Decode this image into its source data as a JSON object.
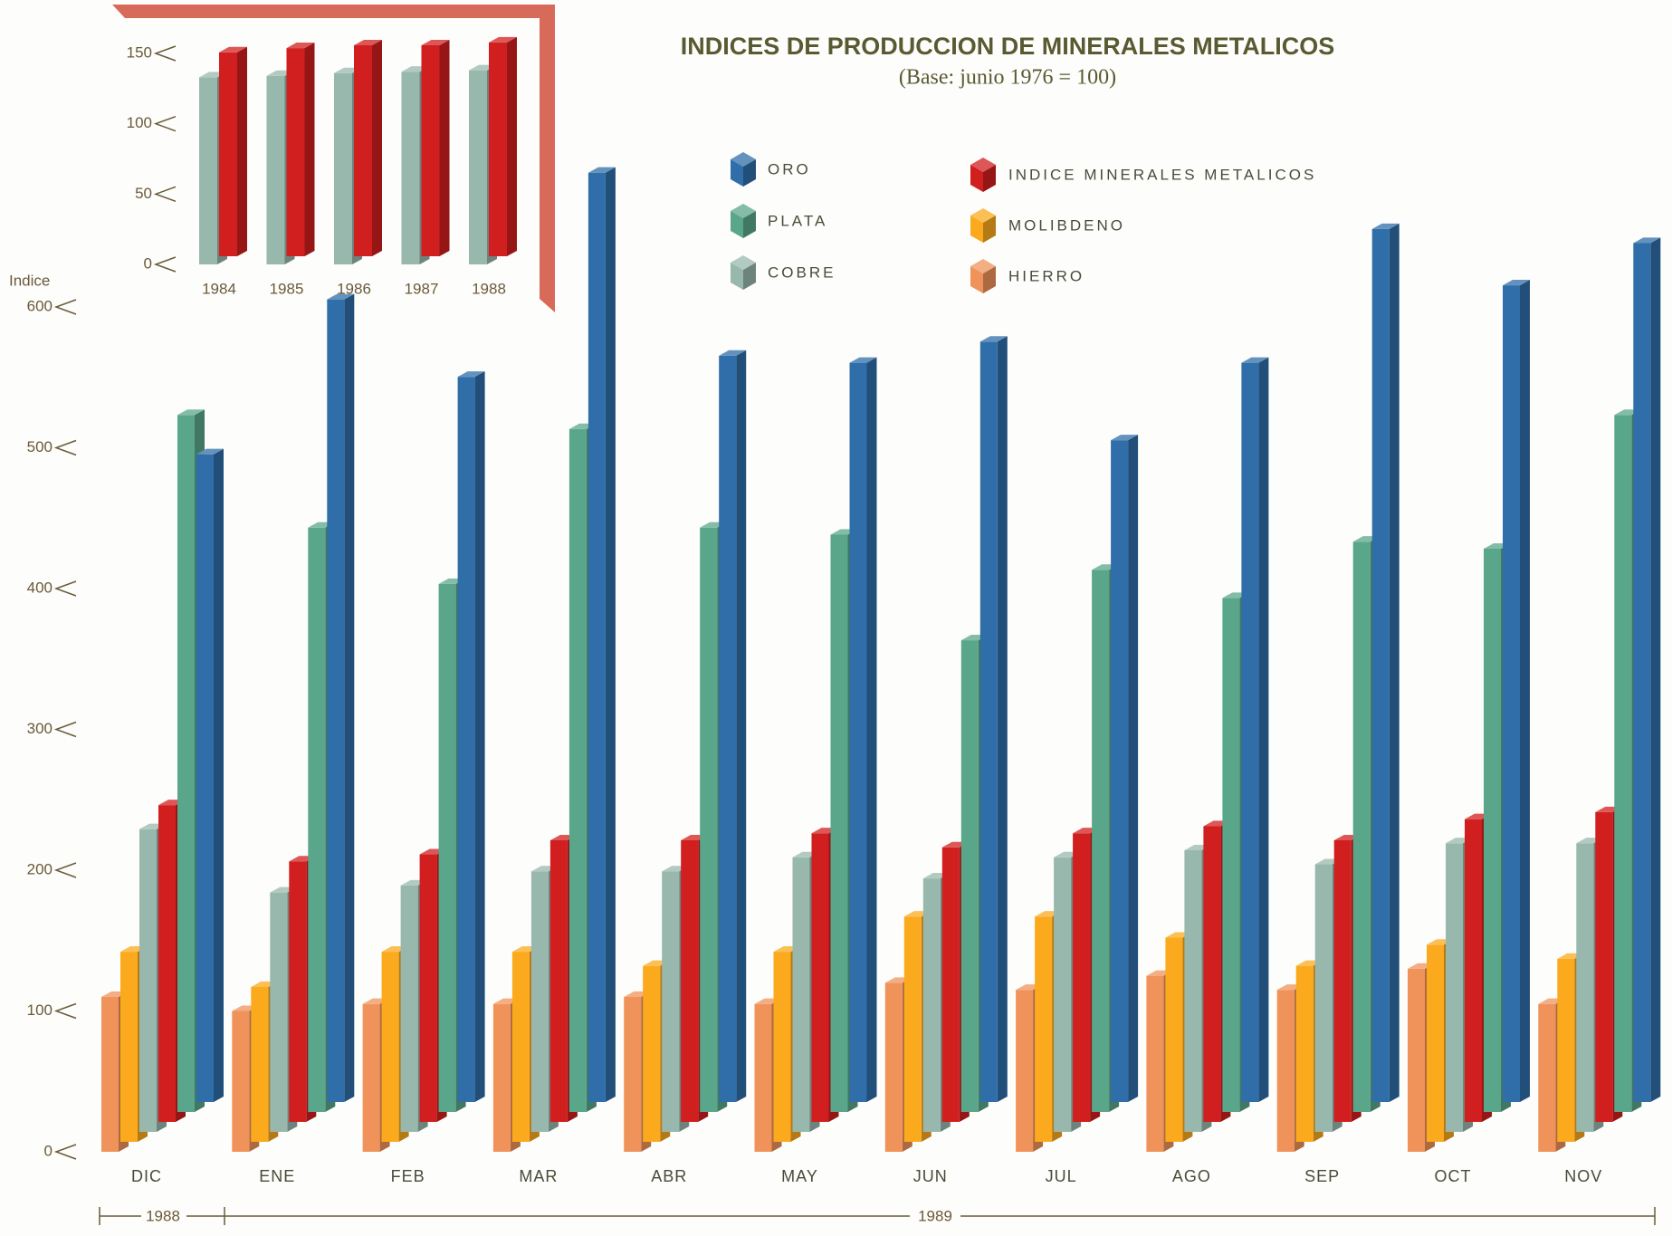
{
  "chart_data": [
    {
      "type": "bar3d",
      "title": "INDICES DE PRODUCCION DE MINERALES METALICOS",
      "subtitle": "(Base: junio 1976 = 100)",
      "y_label": "Indice",
      "periods": [
        "1988",
        "1989"
      ],
      "categories": [
        "DIC",
        "ENE",
        "FEB",
        "MAR",
        "ABR",
        "MAY",
        "JUN",
        "JUL",
        "AGO",
        "SEP",
        "OCT",
        "NOV"
      ],
      "ylim": [
        0,
        600
      ],
      "yticks": [
        0,
        100,
        200,
        300,
        400,
        500,
        600
      ],
      "series": [
        {
          "name": "HIERRO",
          "color": "#f0935a",
          "values": [
            110,
            100,
            105,
            105,
            110,
            105,
            120,
            115,
            125,
            115,
            130,
            105
          ]
        },
        {
          "name": "MOLIBDENO",
          "color": "#fbaa1e",
          "values": [
            135,
            110,
            135,
            135,
            125,
            135,
            160,
            160,
            145,
            125,
            140,
            130
          ]
        },
        {
          "name": "COBRE",
          "color": "#98b8ae",
          "values": [
            215,
            170,
            175,
            185,
            185,
            195,
            180,
            195,
            200,
            190,
            205,
            205
          ]
        },
        {
          "name": "INDICE MINERALES METALICOS",
          "color": "#d11f1f",
          "values": [
            225,
            185,
            190,
            200,
            200,
            205,
            195,
            205,
            210,
            200,
            215,
            220
          ]
        },
        {
          "name": "PLATA",
          "color": "#5aa68a",
          "values": [
            495,
            415,
            375,
            485,
            415,
            410,
            335,
            385,
            365,
            405,
            400,
            495
          ]
        },
        {
          "name": "ORO",
          "color": "#2f6ea8",
          "values": [
            460,
            570,
            515,
            660,
            530,
            525,
            540,
            470,
            525,
            620,
            580,
            610
          ]
        }
      ]
    },
    {
      "type": "bar3d",
      "categories": [
        "1984",
        "1985",
        "1986",
        "1987",
        "1988"
      ],
      "ylim": [
        0,
        150
      ],
      "yticks": [
        0,
        50,
        100,
        150
      ],
      "series": [
        {
          "color": "#98b8ae",
          "values": [
            133,
            134,
            136,
            137,
            138
          ]
        },
        {
          "color": "#d11f1f",
          "values": [
            145,
            148,
            150,
            150,
            152
          ]
        }
      ]
    }
  ]
}
